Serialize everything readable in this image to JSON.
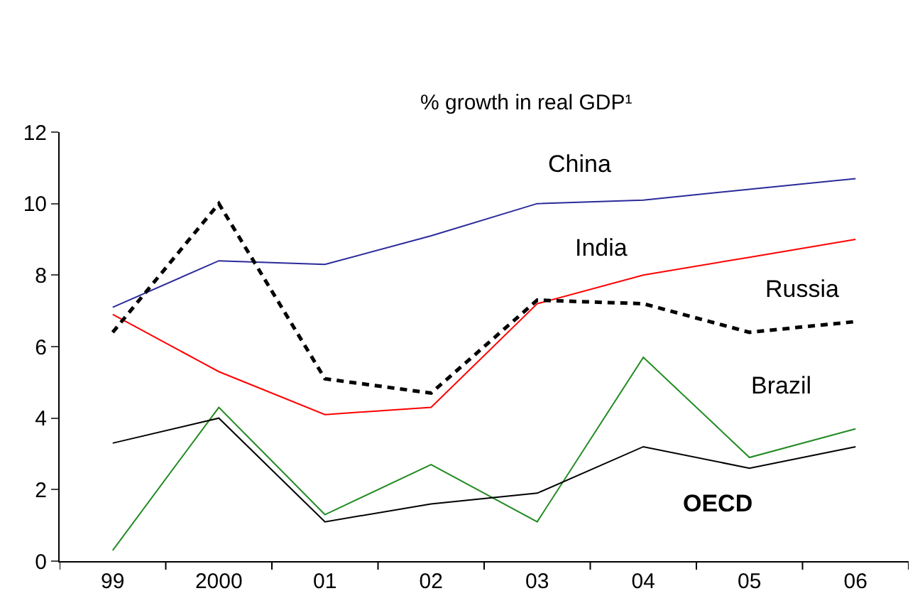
{
  "chart_data": {
    "type": "line",
    "subtitle": "% growth in real GDP¹",
    "categories": [
      "99",
      "2000",
      "01",
      "02",
      "03",
      "04",
      "05",
      "06"
    ],
    "series": [
      {
        "name": "China",
        "color": "#2a2a9a",
        "line_style": "solid",
        "values": [
          7.1,
          8.4,
          8.3,
          9.1,
          10.0,
          10.1,
          10.4,
          10.7
        ]
      },
      {
        "name": "India",
        "color": "#ff0000",
        "line_style": "solid",
        "values": [
          6.9,
          5.3,
          4.1,
          4.3,
          7.2,
          8.0,
          8.5,
          9.0
        ]
      },
      {
        "name": "Russia",
        "color": "#000000",
        "line_style": "dashed",
        "values": [
          6.4,
          10.0,
          5.1,
          4.7,
          7.3,
          7.2,
          6.4,
          6.7
        ]
      },
      {
        "name": "Brazil",
        "color": "#228b22",
        "line_style": "solid",
        "values": [
          0.3,
          4.3,
          1.3,
          2.7,
          1.1,
          5.7,
          2.9,
          3.7
        ]
      },
      {
        "name": "OECD",
        "color": "#000000",
        "line_style": "solid",
        "values": [
          3.3,
          4.0,
          1.1,
          1.6,
          1.9,
          3.2,
          2.6,
          3.2
        ]
      }
    ],
    "ylim": [
      0,
      12
    ],
    "yticks": [
      0,
      2,
      4,
      6,
      8,
      10,
      12
    ],
    "grid": false,
    "legend": false,
    "marker": "none"
  }
}
